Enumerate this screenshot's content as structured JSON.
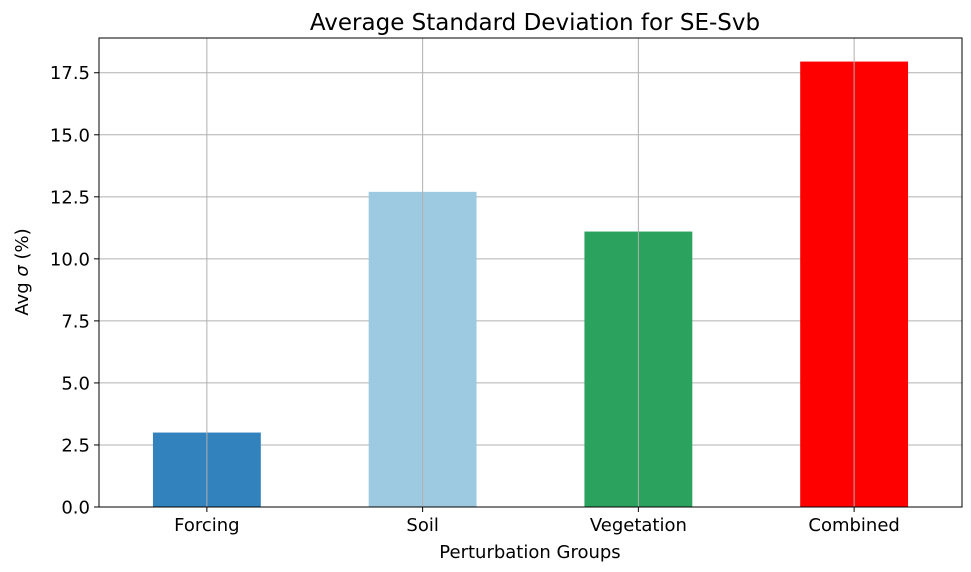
{
  "chart_data": {
    "type": "bar",
    "title": "Average Standard Deviation for SE-Svb",
    "xlabel": "Perturbation Groups",
    "ylabel_prefix": "Avg ",
    "ylabel_symbol": "σ",
    "ylabel_suffix": " (%)",
    "categories": [
      "Forcing",
      "Soil",
      "Vegetation",
      "Combined"
    ],
    "values": [
      3.0,
      12.7,
      11.1,
      17.95
    ],
    "colors": [
      "#3182bd",
      "#9ecae1",
      "#2ca25f",
      "#ff0000"
    ],
    "ylim": [
      0,
      18.9
    ],
    "yticks": [
      0.0,
      2.5,
      5.0,
      7.5,
      10.0,
      12.5,
      15.0,
      17.5
    ],
    "ytick_labels": [
      "0.0",
      "2.5",
      "5.0",
      "7.5",
      "10.0",
      "12.5",
      "15.0",
      "17.5"
    ],
    "grid": true,
    "legend": "none"
  }
}
